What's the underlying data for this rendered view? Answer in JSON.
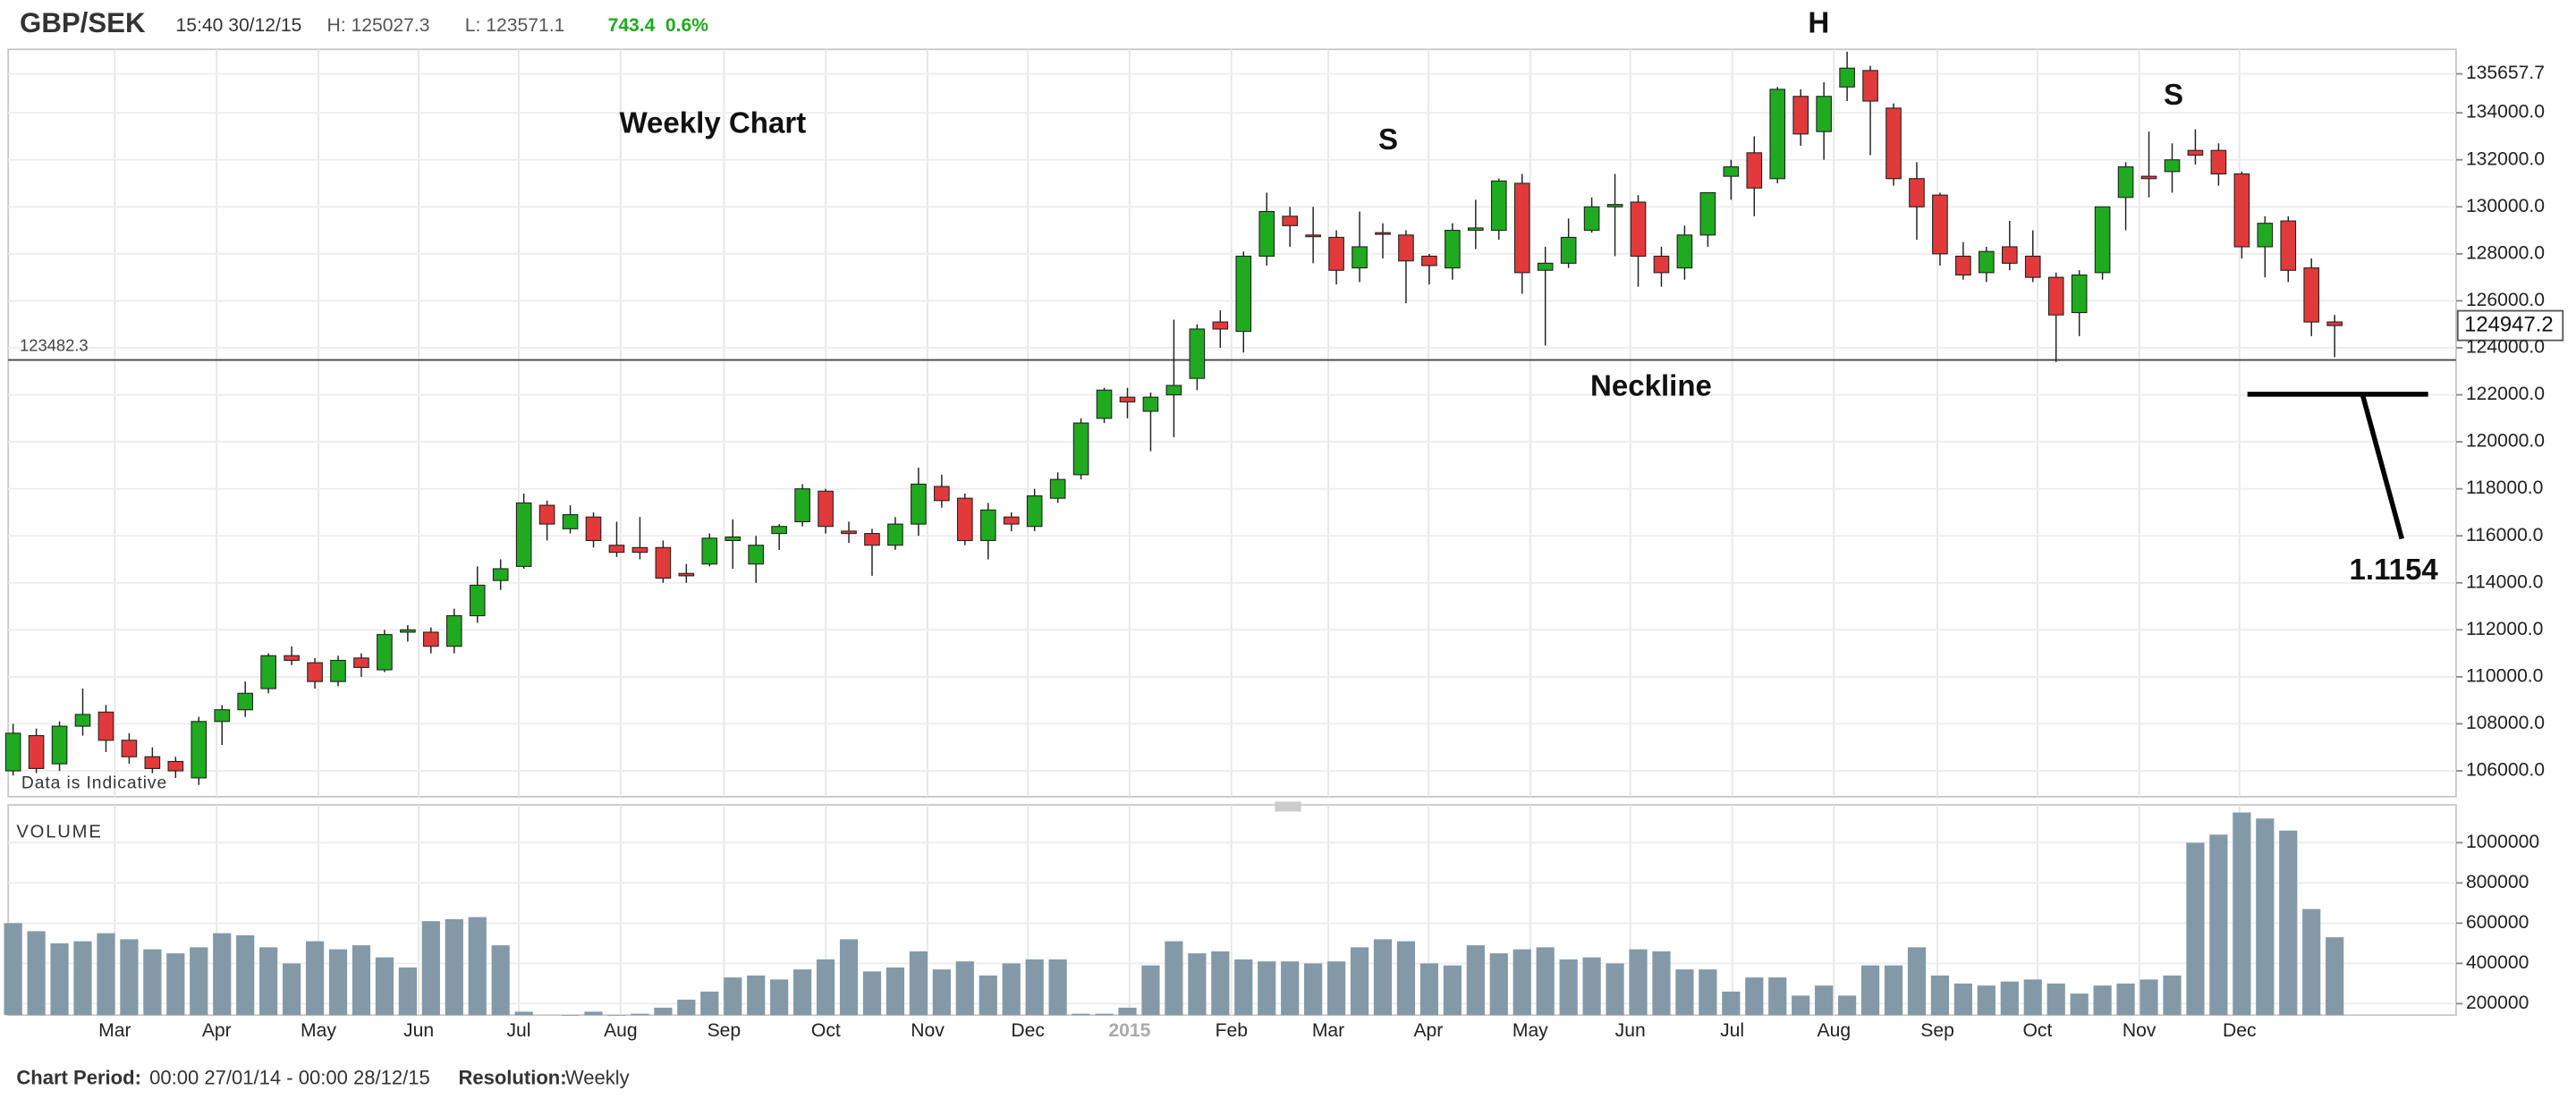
{
  "header": {
    "symbol": "GBP/SEK",
    "time": "15:40 30/12/15",
    "high": "H: 125027.3",
    "low": "L: 123571.1",
    "change": "743.4",
    "change_pct": "0.6%"
  },
  "chart_data": [
    {
      "type": "candlestick",
      "name": "GBP/SEK",
      "annotations": {
        "title": "Weekly Chart",
        "left_shoulder": "S",
        "head": "H",
        "right_shoulder": "S",
        "neckline": "Neckline",
        "target": "1.1154",
        "note": "Data is Indicative"
      },
      "neckline": {
        "value": 123482.3,
        "label": "123482.3"
      },
      "last_price": 124947.2,
      "up_color": "#1faa1f",
      "down_color": "#e23a3a",
      "open": [
        106000,
        107500,
        106300,
        107900,
        108500,
        107300,
        106600,
        106400,
        105700,
        108100,
        108600,
        109500,
        110900,
        110600,
        109800,
        110800,
        110300,
        111900,
        111900,
        111300,
        112600,
        114100,
        114700,
        117300,
        116300,
        116800,
        115600,
        115500,
        115500,
        114400,
        114800,
        115800,
        114800,
        116100,
        116600,
        117900,
        116200,
        116100,
        115600,
        116500,
        118100,
        117600,
        115800,
        116800,
        116400,
        117600,
        118600,
        121000,
        121900,
        121300,
        122000,
        122700,
        125100,
        124700,
        127900,
        129600,
        128800,
        128700,
        127400,
        128900,
        128800,
        127900,
        127400,
        129000,
        129000,
        131000,
        127300,
        127600,
        129000,
        130000,
        130200,
        127900,
        127400,
        128800,
        131300,
        132300,
        131200,
        134700,
        133200,
        135100,
        135800,
        134200,
        131200,
        130500,
        127900,
        127200,
        128300,
        127900,
        127000,
        125500,
        127200,
        130400,
        131300,
        131500,
        132400,
        132400,
        131400,
        128300,
        129400,
        127400,
        125100
      ],
      "high": [
        108000,
        107800,
        108100,
        109500,
        108800,
        107600,
        107000,
        106600,
        108300,
        108800,
        109800,
        111000,
        111300,
        110800,
        110900,
        111000,
        112000,
        112200,
        112100,
        112900,
        114700,
        115000,
        117800,
        117500,
        117300,
        117000,
        116600,
        116800,
        115800,
        114800,
        116100,
        116700,
        116000,
        116500,
        118200,
        118000,
        116600,
        116300,
        116800,
        118900,
        118600,
        117800,
        117400,
        117000,
        118000,
        118700,
        121000,
        122300,
        122300,
        122100,
        125200,
        125000,
        125600,
        128100,
        130600,
        130000,
        130000,
        129000,
        129800,
        129300,
        129000,
        128000,
        129300,
        130300,
        131200,
        131400,
        128300,
        129500,
        130400,
        131400,
        130500,
        128300,
        129200,
        130600,
        132000,
        133000,
        135100,
        135000,
        135300,
        136600,
        136000,
        134400,
        131900,
        130600,
        128500,
        128300,
        129400,
        129000,
        127200,
        127300,
        130000,
        131900,
        133200,
        132700,
        133300,
        132700,
        131500,
        129600,
        129600,
        127800,
        125400
      ],
      "low": [
        105800,
        105900,
        106000,
        107500,
        106800,
        106300,
        105900,
        105700,
        105400,
        107100,
        108300,
        109300,
        110500,
        109500,
        109600,
        110000,
        110200,
        111500,
        111000,
        111000,
        112300,
        113700,
        114600,
        115800,
        116100,
        115500,
        115100,
        115000,
        114000,
        114000,
        114700,
        114600,
        114000,
        115400,
        116400,
        116100,
        115700,
        114300,
        115400,
        116000,
        117200,
        115600,
        115000,
        116200,
        116200,
        117400,
        118400,
        120800,
        121000,
        119600,
        120200,
        122200,
        124000,
        123800,
        127500,
        128300,
        127600,
        126700,
        126800,
        127800,
        125900,
        126700,
        126900,
        128200,
        128600,
        126300,
        124100,
        127400,
        128900,
        127900,
        126600,
        126600,
        126900,
        128300,
        130300,
        129600,
        131000,
        132600,
        132000,
        134500,
        132200,
        130900,
        128600,
        127500,
        126900,
        126800,
        127300,
        126800,
        123400,
        124500,
        126900,
        129000,
        130400,
        130600,
        131800,
        130900,
        127800,
        127000,
        126800,
        124500,
        123600
      ],
      "close": [
        107600,
        106100,
        107900,
        108400,
        107300,
        106600,
        106100,
        106000,
        108100,
        108600,
        109300,
        110900,
        110700,
        109800,
        110700,
        110400,
        111800,
        112000,
        111300,
        112600,
        113900,
        114600,
        117400,
        116500,
        116900,
        115800,
        115300,
        115300,
        114200,
        114300,
        115900,
        115950,
        115600,
        116400,
        118000,
        116400,
        116100,
        115600,
        116500,
        118200,
        117500,
        115800,
        117100,
        116500,
        117700,
        118400,
        120800,
        122200,
        121700,
        121900,
        122400,
        124800,
        124800,
        127900,
        129800,
        129200,
        128750,
        127300,
        128300,
        128850,
        127700,
        127500,
        129000,
        129100,
        131100,
        127200,
        127600,
        128700,
        130000,
        130100,
        127900,
        127200,
        128800,
        130600,
        131700,
        130800,
        135000,
        133100,
        134700,
        135900,
        134500,
        131200,
        130000,
        128000,
        127100,
        128100,
        127600,
        127000,
        125400,
        127100,
        130000,
        131700,
        131200,
        132000,
        132200,
        131400,
        128300,
        129300,
        127300,
        125100,
        124947.2
      ],
      "xlim": [
        -0.21,
        105.23
      ],
      "ylim": [
        104900,
        136700
      ],
      "yticks": [
        {
          "value": 106000,
          "label": "106000.0"
        },
        {
          "value": 108000,
          "label": "108000.0"
        },
        {
          "value": 110000,
          "label": "110000.0"
        },
        {
          "value": 112000,
          "label": "112000.0"
        },
        {
          "value": 114000,
          "label": "114000.0"
        },
        {
          "value": 116000,
          "label": "116000.0"
        },
        {
          "value": 118000,
          "label": "118000.0"
        },
        {
          "value": 120000,
          "label": "120000.0"
        },
        {
          "value": 122000,
          "label": "122000.0"
        },
        {
          "value": 124000,
          "label": "124000.0"
        },
        {
          "value": 126000,
          "label": "126000.0"
        },
        {
          "value": 128000,
          "label": "128000.0"
        },
        {
          "value": 130000,
          "label": "130000.0"
        },
        {
          "value": 132000,
          "label": "132000.0"
        },
        {
          "value": 134000,
          "label": "134000.0"
        },
        135657.7
      ],
      "grid": true
    },
    {
      "type": "bar",
      "title": "VOLUME",
      "color": "#8399a7",
      "values": [
        600000,
        560000,
        500000,
        510000,
        550000,
        520000,
        470000,
        450000,
        480000,
        550000,
        540000,
        480000,
        400000,
        510000,
        470000,
        490000,
        430000,
        380000,
        610000,
        620000,
        630000,
        490000,
        160000,
        null,
        140000,
        160000,
        140000,
        150000,
        180000,
        220000,
        260000,
        330000,
        340000,
        320000,
        370000,
        420000,
        520000,
        360000,
        380000,
        460000,
        370000,
        410000,
        340000,
        400000,
        420000,
        420000,
        150000,
        150000,
        180000,
        390000,
        510000,
        450000,
        460000,
        420000,
        410000,
        410000,
        400000,
        410000,
        480000,
        520000,
        510000,
        400000,
        390000,
        490000,
        450000,
        470000,
        480000,
        420000,
        430000,
        400000,
        470000,
        460000,
        370000,
        370000,
        260000,
        330000,
        330000,
        240000,
        290000,
        240000,
        390000,
        390000,
        480000,
        340000,
        300000,
        290000,
        310000,
        320000,
        300000,
        250000,
        290000,
        300000,
        320000,
        340000,
        1000000,
        1040000,
        1150000,
        1120000,
        1060000,
        670000,
        530000
      ],
      "xlim": [
        -0.21,
        105.23
      ],
      "xticks": [
        {
          "value": 4.38,
          "label": "Mar"
        },
        {
          "value": 8.77,
          "label": "Apr"
        },
        {
          "value": 13.15,
          "label": "May"
        },
        {
          "value": 17.47,
          "label": "Jun"
        },
        {
          "value": 21.78,
          "label": "Jul"
        },
        {
          "value": 26.17,
          "label": "Aug"
        },
        {
          "value": 30.62,
          "label": "Sep"
        },
        {
          "value": 35.01,
          "label": "Oct"
        },
        {
          "value": 39.39,
          "label": "Nov"
        },
        {
          "value": 43.71,
          "label": "Dec"
        },
        {
          "value": 48.09,
          "label": "2015"
        },
        {
          "value": 52.48,
          "label": "Feb"
        },
        {
          "value": 56.65,
          "label": "Mar"
        },
        {
          "value": 60.96,
          "label": "Apr"
        },
        {
          "value": 65.35,
          "label": "May"
        },
        {
          "value": 69.66,
          "label": "Jun"
        },
        {
          "value": 74.05,
          "label": "Jul"
        },
        {
          "value": 78.43,
          "label": "Aug"
        },
        {
          "value": 82.89,
          "label": "Sep"
        },
        {
          "value": 87.2,
          "label": "Oct"
        },
        {
          "value": 91.58,
          "label": "Nov"
        },
        {
          "value": 95.9,
          "label": "Dec"
        }
      ],
      "ylim": [
        142900,
        1187700
      ],
      "yticks": [
        200000,
        400000,
        600000,
        800000,
        1000000
      ],
      "grid": true
    }
  ],
  "footer": {
    "period_label": "Chart Period:",
    "period": "00:00 27/01/14 - 00:00 28/12/15",
    "resolution_label": "Resolution:",
    "resolution": "Weekly"
  }
}
